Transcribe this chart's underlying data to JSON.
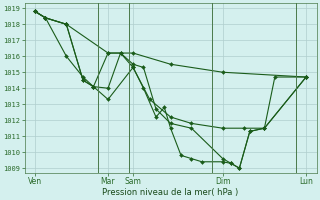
{
  "xlabel": "Pression niveau de la mer( hPa )",
  "background_color": "#d4f0ee",
  "grid_color": "#b0cece",
  "line_color": "#1a5c1a",
  "ytick_min": 1009,
  "ytick_max": 1019,
  "ytick_step": 1,
  "xlim": [
    0,
    14
  ],
  "xtick_positions": [
    0.5,
    4.0,
    5.2,
    9.5,
    13.5
  ],
  "xtick_labels": [
    "Ven",
    "Mar",
    "Sam",
    "Dim",
    "Lun"
  ],
  "vlines": [
    3.5,
    5.0,
    9.0,
    13.0
  ],
  "series": [
    {
      "x": [
        0.5,
        1.0,
        2.0,
        4.0,
        5.2,
        7.0,
        9.5,
        13.5
      ],
      "y": [
        1018.8,
        1018.4,
        1018.0,
        1016.2,
        1016.2,
        1015.5,
        1015.0,
        1014.7
      ]
    },
    {
      "x": [
        0.5,
        1.0,
        2.0,
        2.8,
        3.3,
        4.0,
        5.2,
        6.0,
        7.0,
        8.0,
        9.5,
        10.5,
        11.5,
        13.5
      ],
      "y": [
        1018.8,
        1018.4,
        1016.0,
        1014.7,
        1014.1,
        1013.3,
        1015.3,
        1013.3,
        1012.2,
        1011.8,
        1011.5,
        1011.5,
        1011.5,
        1014.7
      ]
    },
    {
      "x": [
        0.5,
        1.0,
        2.0,
        2.8,
        3.3,
        4.0,
        4.6,
        5.2,
        5.7,
        6.3,
        7.0,
        8.0,
        9.5,
        9.9,
        10.3,
        10.8,
        11.5,
        13.5
      ],
      "y": [
        1018.8,
        1018.4,
        1018.0,
        1014.5,
        1014.1,
        1014.0,
        1016.2,
        1015.5,
        1015.3,
        1012.7,
        1011.8,
        1011.5,
        1009.6,
        1009.3,
        1009.0,
        1011.3,
        1011.5,
        1014.7
      ]
    },
    {
      "x": [
        0.5,
        1.0,
        2.0,
        2.8,
        3.3,
        4.0,
        4.6,
        5.2,
        5.7,
        6.3,
        6.7,
        7.0,
        7.5,
        8.0,
        8.5,
        9.5,
        9.9,
        10.3,
        10.8,
        11.5,
        12.0,
        13.5
      ],
      "y": [
        1018.8,
        1018.4,
        1018.0,
        1014.5,
        1014.1,
        1016.2,
        1016.2,
        1015.3,
        1014.0,
        1012.2,
        1012.8,
        1011.5,
        1009.8,
        1009.6,
        1009.4,
        1009.4,
        1009.3,
        1009.0,
        1011.3,
        1011.5,
        1014.7,
        1014.7
      ]
    }
  ]
}
